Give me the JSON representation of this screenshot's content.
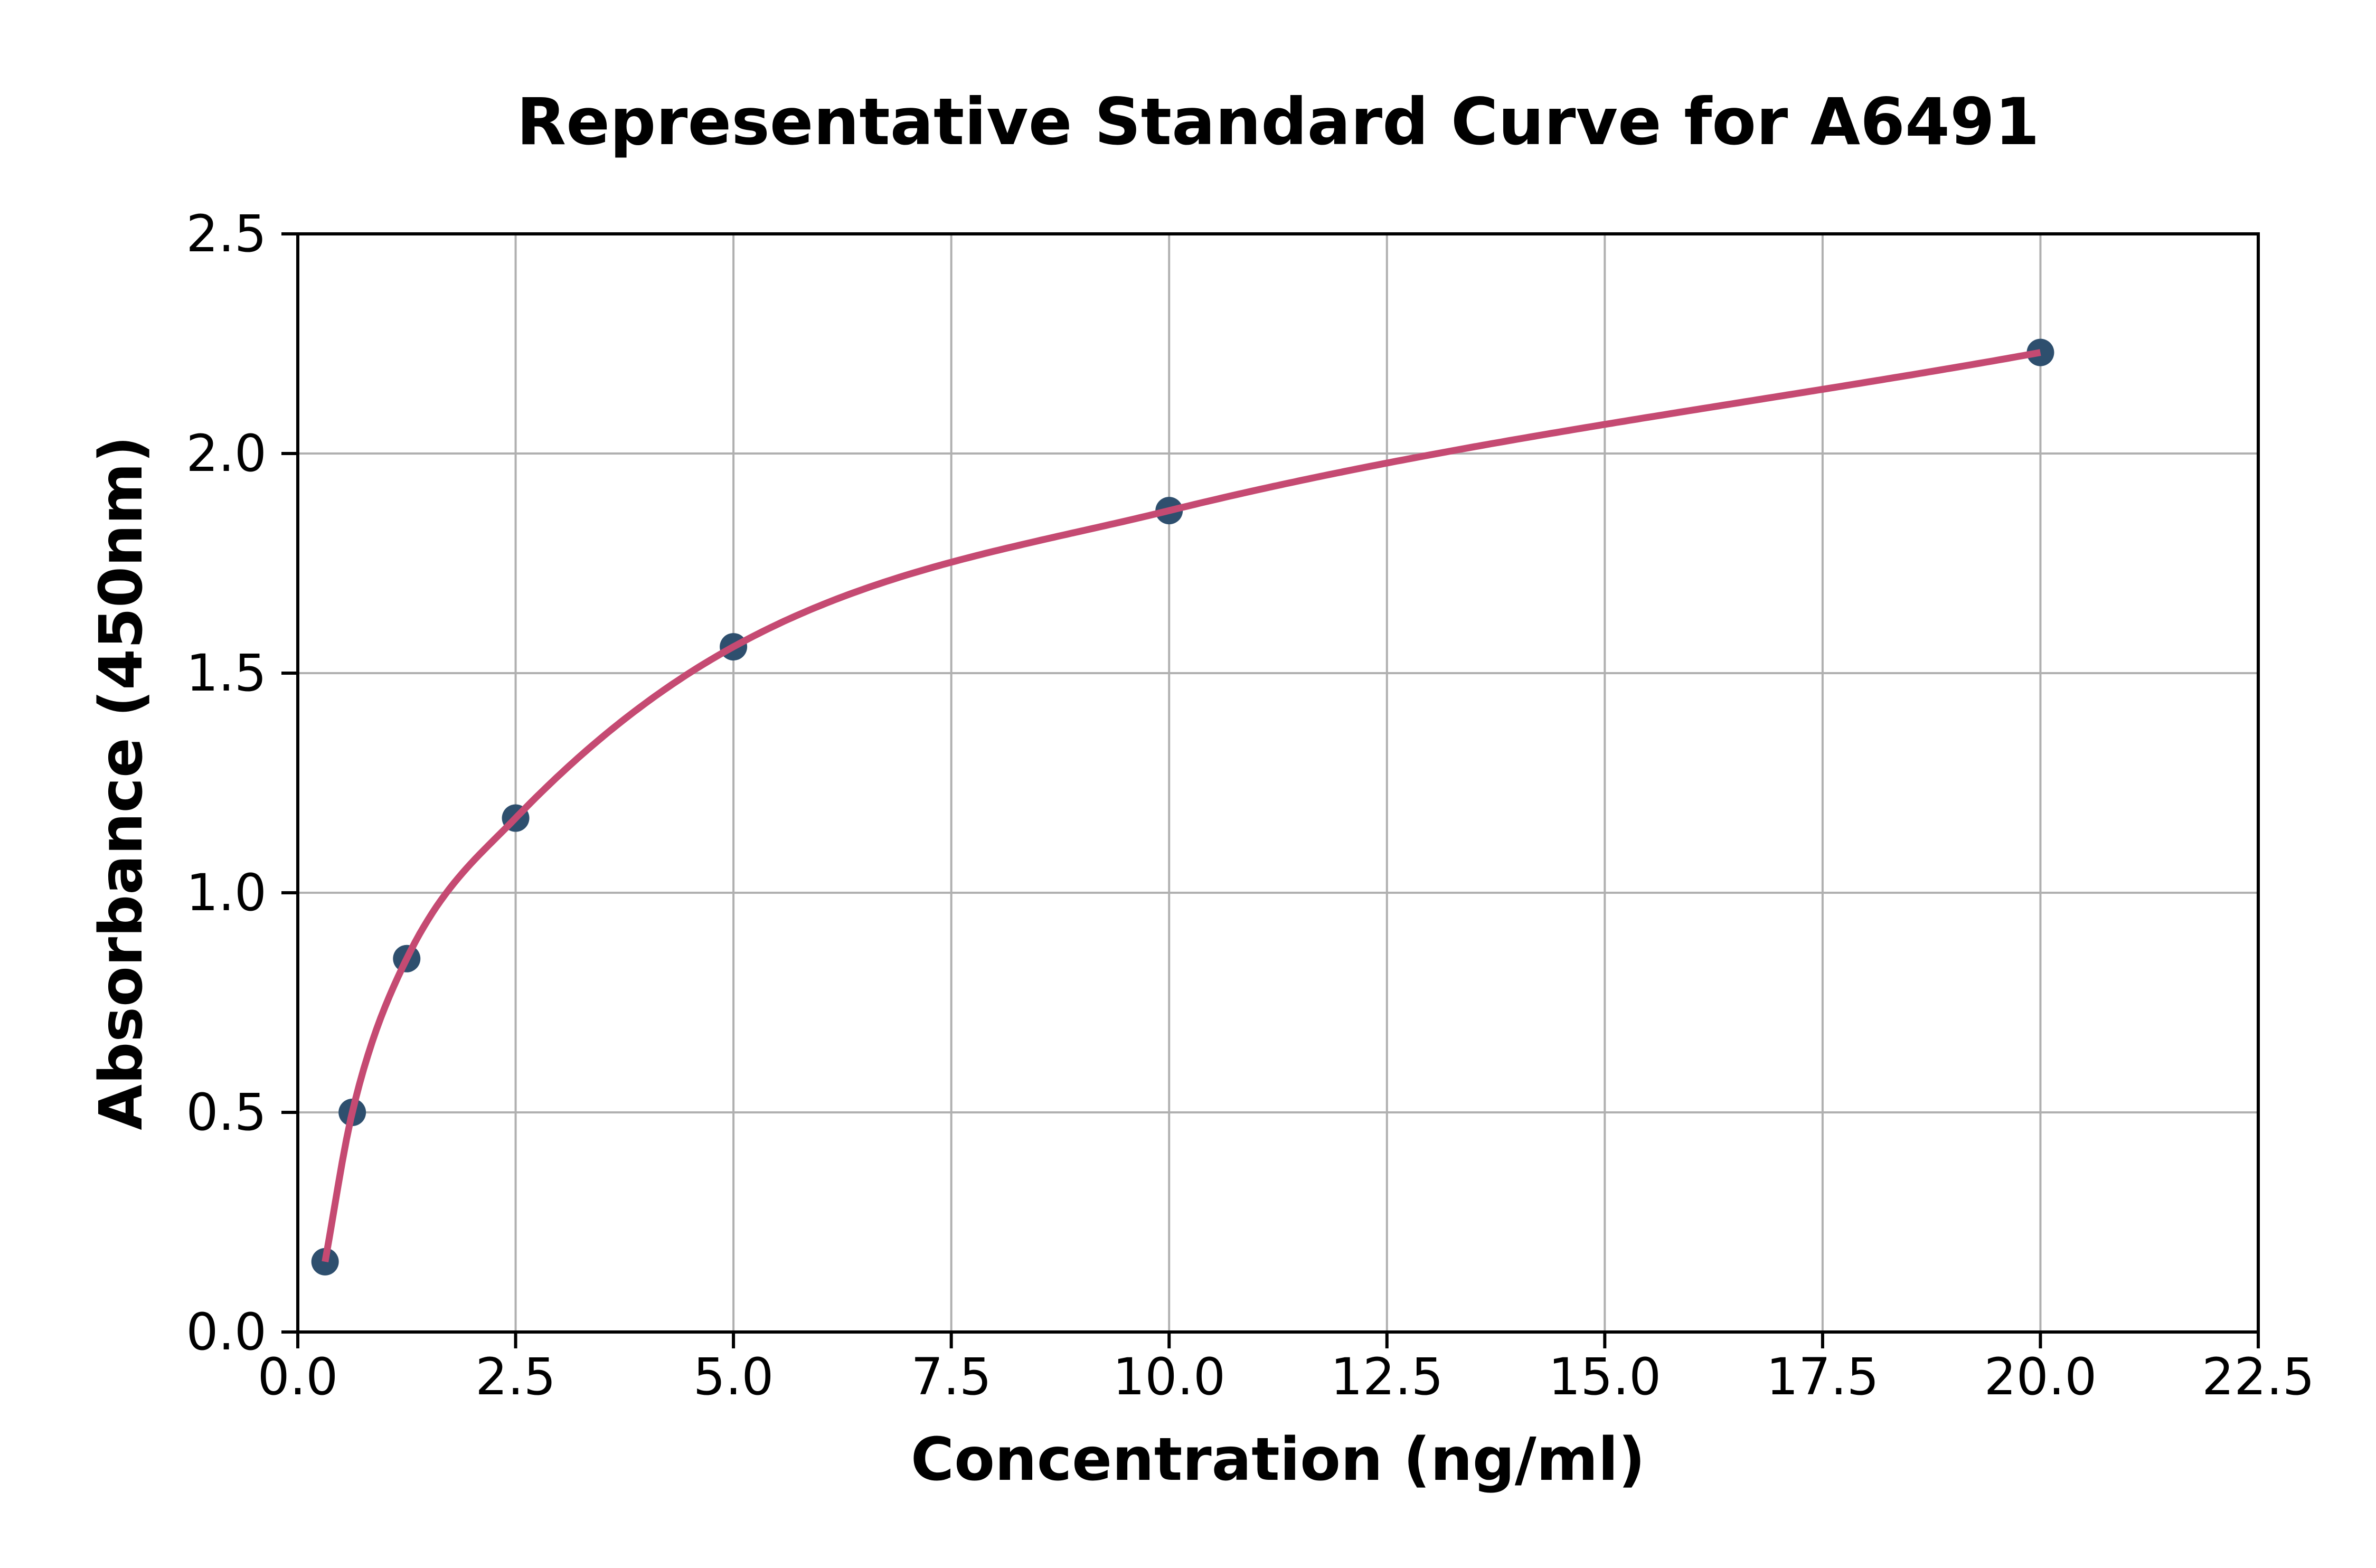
{
  "title": "Representative Standard Curve for A6491",
  "axes": {
    "xlabel": "Concentration (ng/ml)",
    "ylabel": "Absorbance (450nm)",
    "x_ticks": [
      "0.0",
      "2.5",
      "5.0",
      "7.5",
      "10.0",
      "12.5",
      "15.0",
      "17.5",
      "20.0",
      "22.5"
    ],
    "y_ticks": [
      "0.0",
      "0.5",
      "1.0",
      "1.5",
      "2.0",
      "2.5"
    ]
  },
  "chart_data": {
    "type": "scatter",
    "title": "Representative Standard Curve for A6491",
    "xlabel": "Concentration (ng/ml)",
    "ylabel": "Absorbance (450nm)",
    "x": [
      0.313,
      0.625,
      1.25,
      2.5,
      5,
      10,
      20
    ],
    "y": [
      0.16,
      0.5,
      0.85,
      1.17,
      1.56,
      1.87,
      2.23
    ],
    "series": [
      {
        "name": "standard-points",
        "type": "scatter"
      },
      {
        "name": "fitted-curve",
        "type": "line",
        "note": "smooth fit through standard points, drawn from x=0.313 to x=20"
      }
    ],
    "xlim": [
      0,
      22.5
    ],
    "ylim": [
      0,
      2.5
    ],
    "grid": true,
    "legend": "none"
  },
  "style": {
    "point_color": "#2e4f6e",
    "line_color": "#c54a72",
    "grid_color": "#b0b0b0",
    "spine_color": "#000000",
    "background": "#ffffff",
    "text_color": "#000000"
  }
}
